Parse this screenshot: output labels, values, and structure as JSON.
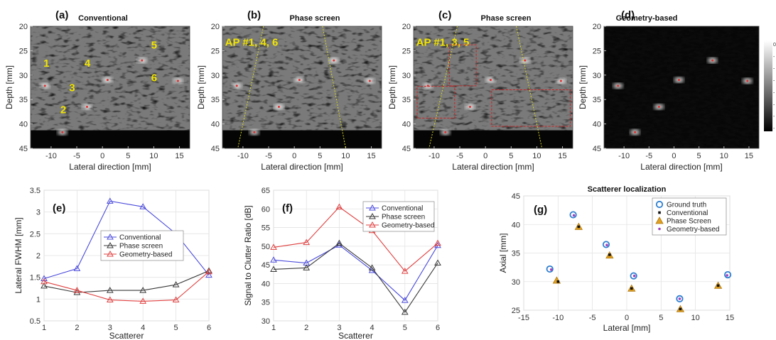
{
  "chart_data": [
    {
      "id": "a",
      "type": "heatmap",
      "panel_label": "(a)",
      "title": "Conventional",
      "xlabel": "Lateral direction [mm]",
      "ylabel": "Depth [mm]",
      "xticks": [
        "-10",
        "-5",
        "0",
        "5",
        "10",
        "15"
      ],
      "yticks": [
        "20",
        "25",
        "30",
        "35",
        "40",
        "45"
      ],
      "xlim": [
        -14,
        17
      ],
      "ylim": [
        20,
        45
      ],
      "annotations": [
        {
          "text": "1",
          "x": -11.5,
          "y": 28.3
        },
        {
          "text": "4",
          "x": -3.5,
          "y": 28.3
        },
        {
          "text": "5",
          "x": 9.5,
          "y": 24.6
        },
        {
          "text": "6",
          "x": 9.5,
          "y": 31.3
        },
        {
          "text": "3",
          "x": -6.5,
          "y": 33.3
        },
        {
          "text": "2",
          "x": -8.2,
          "y": 37.8
        }
      ]
    },
    {
      "id": "b",
      "type": "heatmap",
      "panel_label": "(b)",
      "title": "Phase screen",
      "xlabel": "Lateral direction [mm]",
      "ylabel": "Depth [mm]",
      "xticks": [
        "-10",
        "-5",
        "0",
        "5",
        "10",
        "15"
      ],
      "yticks": [
        "20",
        "25",
        "30",
        "35",
        "40",
        "45"
      ],
      "xlim": [
        -14,
        17
      ],
      "ylim": [
        20,
        45
      ],
      "annotations": [
        {
          "text": "AP #1, 4, 6",
          "x": -13.5,
          "y": 24
        }
      ]
    },
    {
      "id": "c",
      "type": "heatmap",
      "panel_label": "(c)",
      "title": "Phase screen",
      "xlabel": "Lateral direction [mm]",
      "ylabel": "Depth [mm]",
      "xticks": [
        "-10",
        "-5",
        "0",
        "5",
        "10",
        "15"
      ],
      "yticks": [
        "20",
        "25",
        "30",
        "35",
        "40",
        "45"
      ],
      "xlim": [
        -14,
        17
      ],
      "ylim": [
        20,
        45
      ],
      "annotations": [
        {
          "text": "AP #1, 3, 5",
          "x": -13.5,
          "y": 24
        }
      ]
    },
    {
      "id": "d",
      "type": "heatmap",
      "panel_label": "(d)",
      "title": "Geometry-based",
      "xlabel": "Lateral direction [mm]",
      "ylabel": "Depth [mm]",
      "xticks": [
        "-10",
        "-5",
        "0",
        "5",
        "10",
        "15"
      ],
      "yticks": [
        "20",
        "25",
        "30",
        "35",
        "40",
        "45"
      ],
      "xlim": [
        -14,
        17
      ],
      "ylim": [
        20,
        45
      ],
      "colorbar_ticks": [
        "0",
        "-",
        "-",
        "-",
        "-",
        "-",
        "-",
        "-"
      ]
    },
    {
      "id": "e",
      "type": "line",
      "panel_label": "(e)",
      "title": "",
      "xlabel": "Scatterer",
      "ylabel": "Lateral FWHM [mm]",
      "x": [
        1,
        2,
        3,
        4,
        5,
        6
      ],
      "xlim": [
        1,
        6
      ],
      "ylim": [
        0.5,
        3.5
      ],
      "xticks": [
        "1",
        "2",
        "3",
        "4",
        "5",
        "6"
      ],
      "yticks": [
        "0.5",
        "1",
        "1.5",
        "2",
        "2.5",
        "3",
        "3.5"
      ],
      "grid": true,
      "legend_position": "center-right",
      "series": [
        {
          "name": "Conventional",
          "color": "#4b4bdc",
          "values": [
            1.47,
            1.7,
            3.25,
            3.12,
            2.5,
            1.55
          ]
        },
        {
          "name": "Phase screen",
          "color": "#3a3a3a",
          "values": [
            1.3,
            1.15,
            1.2,
            1.2,
            1.33,
            1.65
          ]
        },
        {
          "name": "Geometry-based",
          "color": "#e04040",
          "values": [
            1.4,
            1.2,
            0.98,
            0.95,
            0.98,
            1.63
          ]
        }
      ]
    },
    {
      "id": "f",
      "type": "line",
      "panel_label": "(f)",
      "title": "",
      "xlabel": "Scatterer",
      "ylabel": "Signal to Clutter Ratio [dB]",
      "x": [
        1,
        2,
        3,
        4,
        5,
        6
      ],
      "xlim": [
        1,
        6
      ],
      "ylim": [
        30,
        65
      ],
      "xticks": [
        "1",
        "2",
        "3",
        "4",
        "5",
        "6"
      ],
      "yticks": [
        "30",
        "35",
        "40",
        "45",
        "50",
        "55",
        "60",
        "65"
      ],
      "grid": true,
      "legend_position": "top-right",
      "series": [
        {
          "name": "Conventional",
          "color": "#4b4bdc",
          "values": [
            46.3,
            45.5,
            50.3,
            43.5,
            35.5,
            50.2
          ]
        },
        {
          "name": "Phase screen",
          "color": "#3a3a3a",
          "values": [
            43.8,
            44.2,
            50.8,
            44.2,
            32.3,
            45.5
          ]
        },
        {
          "name": "Geometry-based",
          "color": "#e04040",
          "values": [
            49.7,
            51.0,
            60.5,
            54.2,
            43.3,
            50.8
          ]
        }
      ]
    },
    {
      "id": "g",
      "type": "scatter",
      "panel_label": "(g)",
      "title": "Scatterer localization",
      "xlabel": "Lateral [mm]",
      "ylabel": "Axial [mm]",
      "xlim": [
        -15,
        15
      ],
      "ylim": [
        25,
        45
      ],
      "xticks": [
        "-15",
        "-10",
        "-5",
        "0",
        "5",
        "10",
        "15"
      ],
      "yticks": [
        "25",
        "30",
        "35",
        "40",
        "45"
      ],
      "grid": true,
      "legend_position": "top-right",
      "series": [
        {
          "name": "Ground truth",
          "color": "#2f7fd0",
          "marker": "circle",
          "x": [
            -11.2,
            -7.8,
            -3.0,
            1.0,
            7.7,
            14.7
          ],
          "y": [
            32.2,
            41.7,
            36.5,
            31.0,
            27.0,
            31.2
          ]
        },
        {
          "name": "Conventional",
          "color": "#111111",
          "marker": "square",
          "x": [
            -10.0,
            -7.0,
            -2.5,
            0.7,
            7.8,
            13.3
          ],
          "y": [
            30.0,
            39.6,
            34.7,
            28.8,
            25.2,
            29.3
          ]
        },
        {
          "name": "Phase Screen",
          "color": "#e0a020",
          "marker": "triangle",
          "x": [
            -10.2,
            -7.0,
            -2.5,
            0.7,
            7.8,
            13.3
          ],
          "y": [
            30.2,
            39.6,
            34.6,
            28.8,
            25.2,
            29.3
          ]
        },
        {
          "name": "Geometry-based",
          "color": "#a040c0",
          "marker": "dot",
          "x": [
            -11.0,
            -7.7,
            -2.9,
            1.1,
            7.7,
            14.6
          ],
          "y": [
            32.1,
            41.6,
            36.4,
            31.0,
            27.0,
            31.1
          ]
        }
      ]
    }
  ]
}
